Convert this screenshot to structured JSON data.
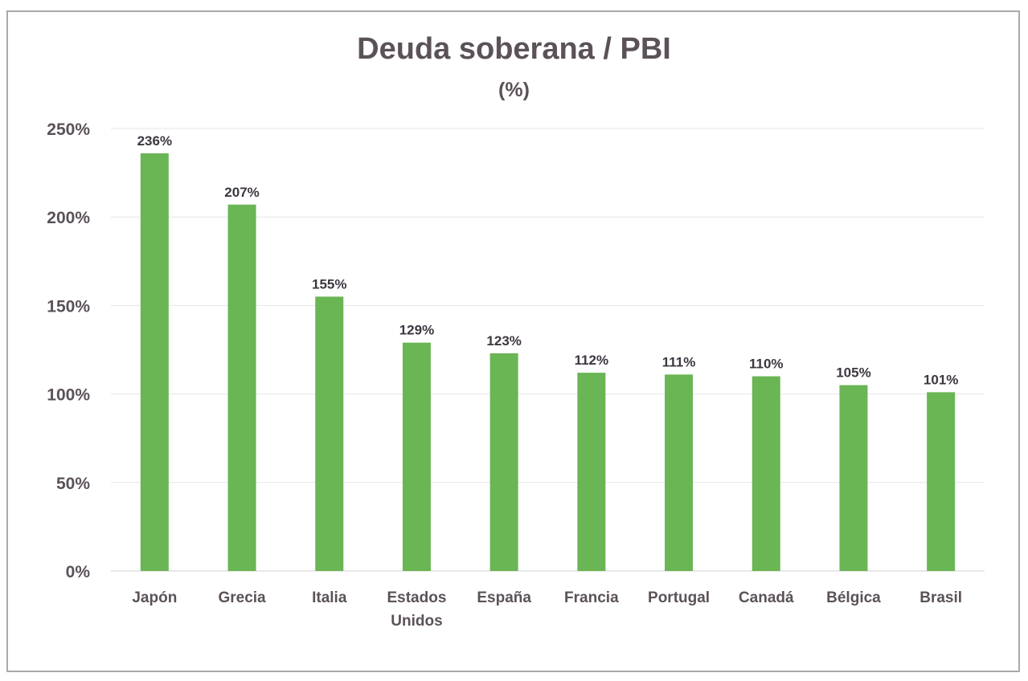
{
  "chart_data": {
    "type": "bar",
    "title": "Deuda soberana / PBI",
    "subtitle": "(%)",
    "categories": [
      [
        "Japón"
      ],
      [
        "Grecia"
      ],
      [
        "Italia"
      ],
      [
        "Estados",
        "Unidos"
      ],
      [
        "España"
      ],
      [
        "Francia"
      ],
      [
        "Portugal"
      ],
      [
        "Canadá"
      ],
      [
        "Bélgica"
      ],
      [
        "Brasil"
      ]
    ],
    "values": [
      236,
      207,
      155,
      129,
      123,
      112,
      111,
      110,
      105,
      101
    ],
    "value_labels": [
      "236%",
      "207%",
      "155%",
      "129%",
      "123%",
      "112%",
      "111%",
      "110%",
      "105%",
      "101%"
    ],
    "y_ticks": [
      "0%",
      "50%",
      "100%",
      "150%",
      "200%",
      "250%"
    ],
    "ylim": [
      0,
      250
    ],
    "grid": true,
    "bar_color": "#6ab554",
    "grid_color": "#e6e6e6"
  }
}
